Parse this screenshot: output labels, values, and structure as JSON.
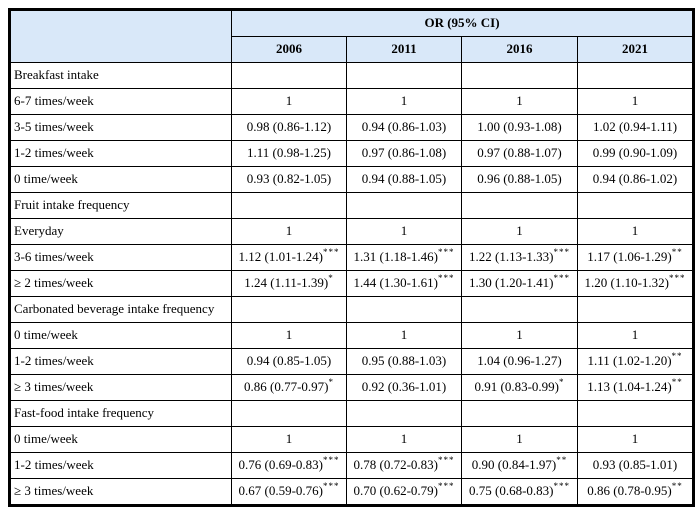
{
  "colors": {
    "header_bg": "#d9e8f9",
    "border": "#000000",
    "cell_bg": "#ffffff"
  },
  "table": {
    "header": {
      "or_label": "OR (95% CI)",
      "years": [
        "2006",
        "2011",
        "2016",
        "2021"
      ]
    },
    "sections": [
      {
        "title": "Breakfast intake",
        "rows": [
          {
            "label": "6-7 times/week",
            "cells": [
              [
                "1",
                ""
              ],
              [
                "1",
                ""
              ],
              [
                "1",
                ""
              ],
              [
                "1",
                ""
              ]
            ]
          },
          {
            "label": "3-5 times/week",
            "cells": [
              [
                "0.98 (0.86-1.12)",
                ""
              ],
              [
                "0.94 (0.86-1.03)",
                ""
              ],
              [
                "1.00 (0.93-1.08)",
                ""
              ],
              [
                "1.02 (0.94-1.11)",
                ""
              ]
            ]
          },
          {
            "label": "1-2 times/week",
            "cells": [
              [
                "1.11 (0.98-1.25)",
                ""
              ],
              [
                "0.97 (0.86-1.08)",
                ""
              ],
              [
                "0.97 (0.88-1.07)",
                ""
              ],
              [
                "0.99 (0.90-1.09)",
                ""
              ]
            ]
          },
          {
            "label": "0 time/week",
            "cells": [
              [
                "0.93 (0.82-1.05)",
                ""
              ],
              [
                "0.94 (0.88-1.05)",
                ""
              ],
              [
                "0.96 (0.88-1.05)",
                ""
              ],
              [
                "0.94 (0.86-1.02)",
                ""
              ]
            ]
          }
        ]
      },
      {
        "title": "Fruit intake frequency",
        "rows": [
          {
            "label": "Everyday",
            "cells": [
              [
                "1",
                ""
              ],
              [
                "1",
                ""
              ],
              [
                "1",
                ""
              ],
              [
                "1",
                ""
              ]
            ]
          },
          {
            "label": "3-6 times/week",
            "cells": [
              [
                "1.12 (1.01-1.24)",
                "***"
              ],
              [
                "1.31 (1.18-1.46)",
                "***"
              ],
              [
                "1.22 (1.13-1.33)",
                "***"
              ],
              [
                "1.17 (1.06-1.29)",
                "**"
              ]
            ]
          },
          {
            "label": "≥ 2 times/week",
            "cells": [
              [
                "1.24 (1.11-1.39)",
                "*"
              ],
              [
                "1.44 (1.30-1.61)",
                "***"
              ],
              [
                "1.30 (1.20-1.41)",
                "***"
              ],
              [
                "1.20 (1.10-1.32)",
                "***"
              ]
            ]
          }
        ]
      },
      {
        "title": "Carbonated beverage intake frequency",
        "rows": [
          {
            "label": "0 time/week",
            "cells": [
              [
                "1",
                ""
              ],
              [
                "1",
                ""
              ],
              [
                "1",
                ""
              ],
              [
                "1",
                ""
              ]
            ]
          },
          {
            "label": "1-2 times/week",
            "cells": [
              [
                "0.94 (0.85-1.05)",
                ""
              ],
              [
                "0.95 (0.88-1.03)",
                ""
              ],
              [
                "1.04 (0.96-1.27)",
                ""
              ],
              [
                "1.11 (1.02-1.20)",
                "**"
              ]
            ]
          },
          {
            "label": "≥ 3 times/week",
            "cells": [
              [
                "0.86 (0.77-0.97)",
                "*"
              ],
              [
                "0.92 (0.36-1.01)",
                ""
              ],
              [
                "0.91 (0.83-0.99)",
                "*"
              ],
              [
                "1.13 (1.04-1.24)",
                "**"
              ]
            ]
          }
        ]
      },
      {
        "title": "Fast-food intake frequency",
        "rows": [
          {
            "label": "0 time/week",
            "cells": [
              [
                "1",
                ""
              ],
              [
                "1",
                ""
              ],
              [
                "1",
                ""
              ],
              [
                "1",
                ""
              ]
            ]
          },
          {
            "label": "1-2 times/week",
            "cells": [
              [
                "0.76 (0.69-0.83)",
                "***"
              ],
              [
                "0.78 (0.72-0.83)",
                "***"
              ],
              [
                "0.90 (0.84-1.97)",
                "**"
              ],
              [
                "0.93 (0.85-1.01)",
                ""
              ]
            ]
          },
          {
            "label": "≥ 3 times/week",
            "cells": [
              [
                "0.67 (0.59-0.76)",
                "***"
              ],
              [
                "0.70 (0.62-0.79)",
                "***"
              ],
              [
                "0.75 (0.68-0.83)",
                "***"
              ],
              [
                "0.86 (0.78-0.95)",
                "**"
              ]
            ]
          }
        ]
      }
    ]
  }
}
